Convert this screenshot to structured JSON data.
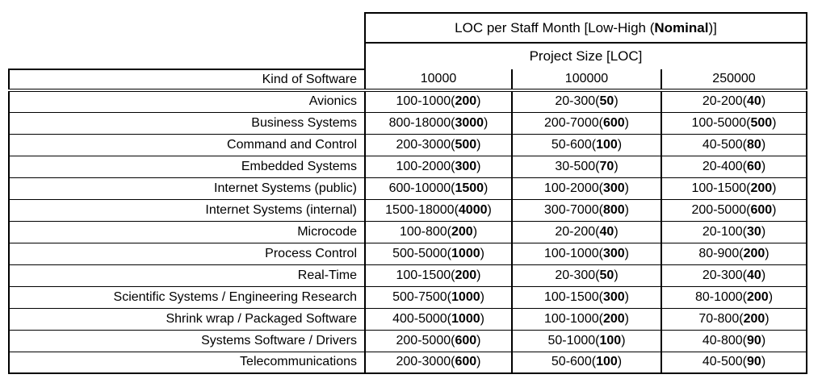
{
  "page": {
    "background": "#ffffff",
    "colors": {
      "border": "#000000",
      "text": "#000000"
    }
  },
  "table": {
    "title": {
      "prefix": "LOC per Staff Month [Low-High (",
      "emphasis": "Nominal",
      "suffix": ")]"
    },
    "subtitle": "Project Size [LOC]",
    "row_header_label": "Kind of Software",
    "size_columns": [
      "10000",
      "100000",
      "250000"
    ],
    "rows": [
      {
        "label": "Avionics",
        "cells": [
          {
            "range": "100-1000",
            "nominal": "200"
          },
          {
            "range": "20-300",
            "nominal": "50"
          },
          {
            "range": "20-200",
            "nominal": "40"
          }
        ]
      },
      {
        "label": "Business Systems",
        "cells": [
          {
            "range": "800-18000",
            "nominal": "3000"
          },
          {
            "range": "200-7000",
            "nominal": "600"
          },
          {
            "range": "100-5000",
            "nominal": "500"
          }
        ]
      },
      {
        "label": "Command and Control",
        "cells": [
          {
            "range": "200-3000",
            "nominal": "500"
          },
          {
            "range": "50-600",
            "nominal": "100"
          },
          {
            "range": "40-500",
            "nominal": "80"
          }
        ]
      },
      {
        "label": "Embedded Systems",
        "cells": [
          {
            "range": "100-2000",
            "nominal": "300"
          },
          {
            "range": "30-500",
            "nominal": "70"
          },
          {
            "range": "20-400",
            "nominal": "60"
          }
        ]
      },
      {
        "label": "Internet Systems (public)",
        "cells": [
          {
            "range": "600-10000",
            "nominal": "1500"
          },
          {
            "range": "100-2000",
            "nominal": "300"
          },
          {
            "range": "100-1500",
            "nominal": "200"
          }
        ]
      },
      {
        "label": "Internet Systems (internal)",
        "cells": [
          {
            "range": "1500-18000",
            "nominal": "4000"
          },
          {
            "range": "300-7000",
            "nominal": "800"
          },
          {
            "range": "200-5000",
            "nominal": "600"
          }
        ]
      },
      {
        "label": "Microcode",
        "cells": [
          {
            "range": "100-800",
            "nominal": "200"
          },
          {
            "range": "20-200",
            "nominal": "40"
          },
          {
            "range": "20-100",
            "nominal": "30"
          }
        ]
      },
      {
        "label": "Process Control",
        "cells": [
          {
            "range": "500-5000",
            "nominal": "1000"
          },
          {
            "range": "100-1000",
            "nominal": "300"
          },
          {
            "range": "80-900",
            "nominal": "200"
          }
        ]
      },
      {
        "label": "Real-Time",
        "cells": [
          {
            "range": "100-1500",
            "nominal": "200"
          },
          {
            "range": "20-300",
            "nominal": "50"
          },
          {
            "range": "20-300",
            "nominal": "40"
          }
        ]
      },
      {
        "label": "Scientific Systems / Engineering Research",
        "cells": [
          {
            "range": "500-7500",
            "nominal": "1000"
          },
          {
            "range": "100-1500",
            "nominal": "300"
          },
          {
            "range": "80-1000",
            "nominal": "200"
          }
        ]
      },
      {
        "label": "Shrink wrap / Packaged Software",
        "cells": [
          {
            "range": "400-5000",
            "nominal": "1000"
          },
          {
            "range": "100-1000",
            "nominal": "200"
          },
          {
            "range": "70-800",
            "nominal": "200"
          }
        ]
      },
      {
        "label": "Systems Software / Drivers",
        "cells": [
          {
            "range": "200-5000",
            "nominal": "600"
          },
          {
            "range": "50-1000",
            "nominal": "100"
          },
          {
            "range": "40-800",
            "nominal": "90"
          }
        ]
      },
      {
        "label": "Telecommunications",
        "cells": [
          {
            "range": "200-3000",
            "nominal": "600"
          },
          {
            "range": "50-600",
            "nominal": "100"
          },
          {
            "range": "40-500",
            "nominal": "90"
          }
        ]
      }
    ]
  }
}
